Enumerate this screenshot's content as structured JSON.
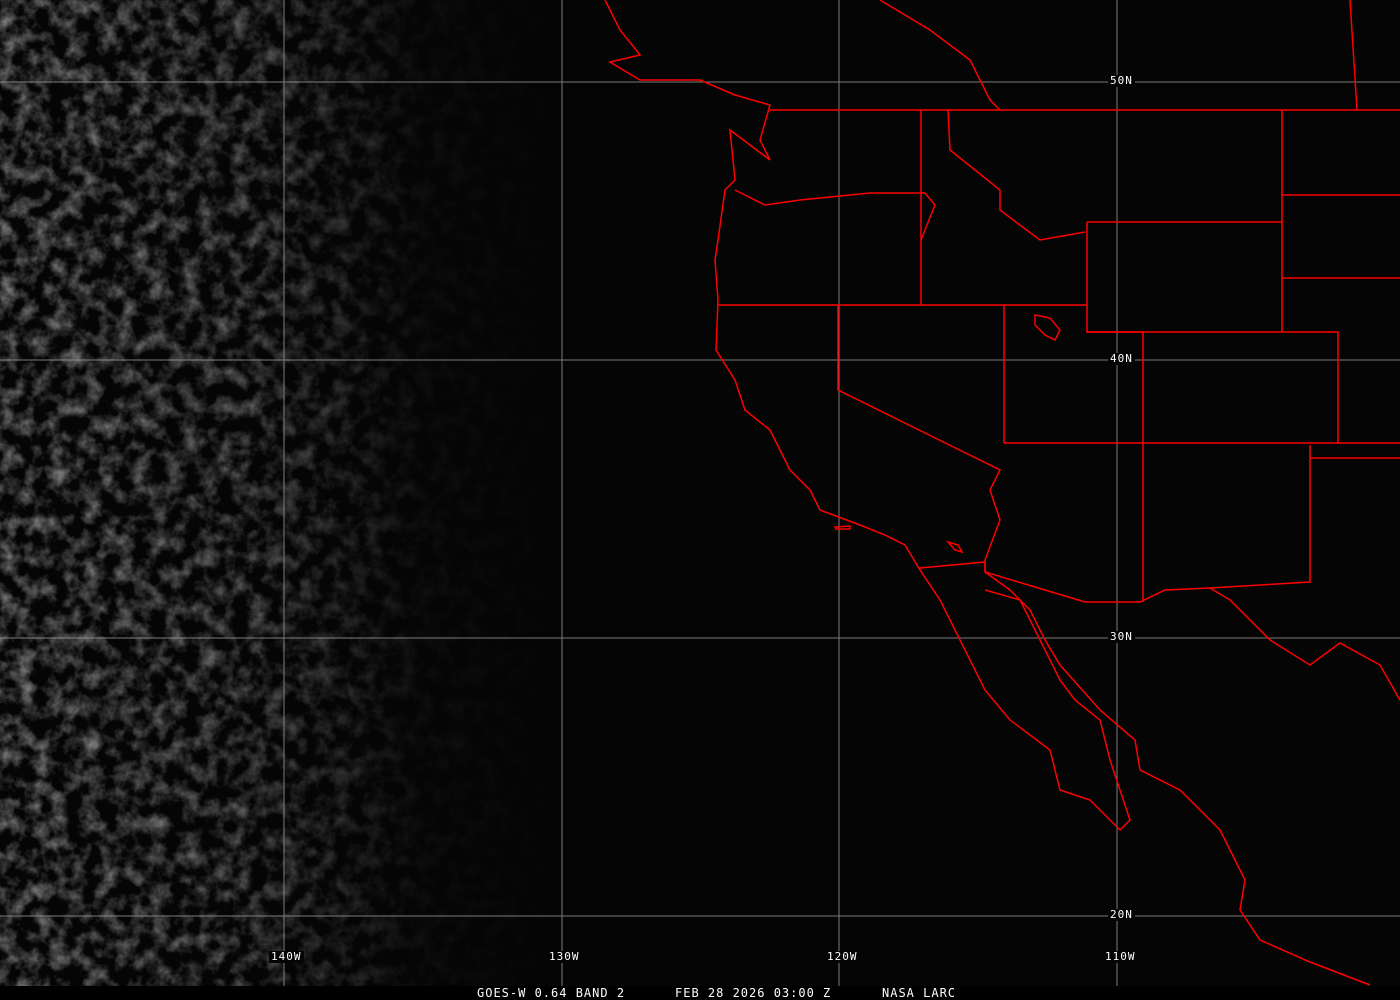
{
  "image": {
    "type": "satellite-imagery",
    "caption": {
      "satellite": "GOES-W 0.64 BAND 2",
      "datetime": "FEB 28 2026 03:00 Z",
      "source": "NASA LARC"
    },
    "latitude_labels": [
      "50N",
      "40N",
      "30N",
      "20N"
    ],
    "longitude_labels": [
      "140W",
      "130W",
      "120W",
      "110W"
    ],
    "colors": {
      "boundaries": "#ff0000",
      "grid": "#9a9a9a",
      "background": "#050505",
      "text": "#ffffff"
    }
  }
}
